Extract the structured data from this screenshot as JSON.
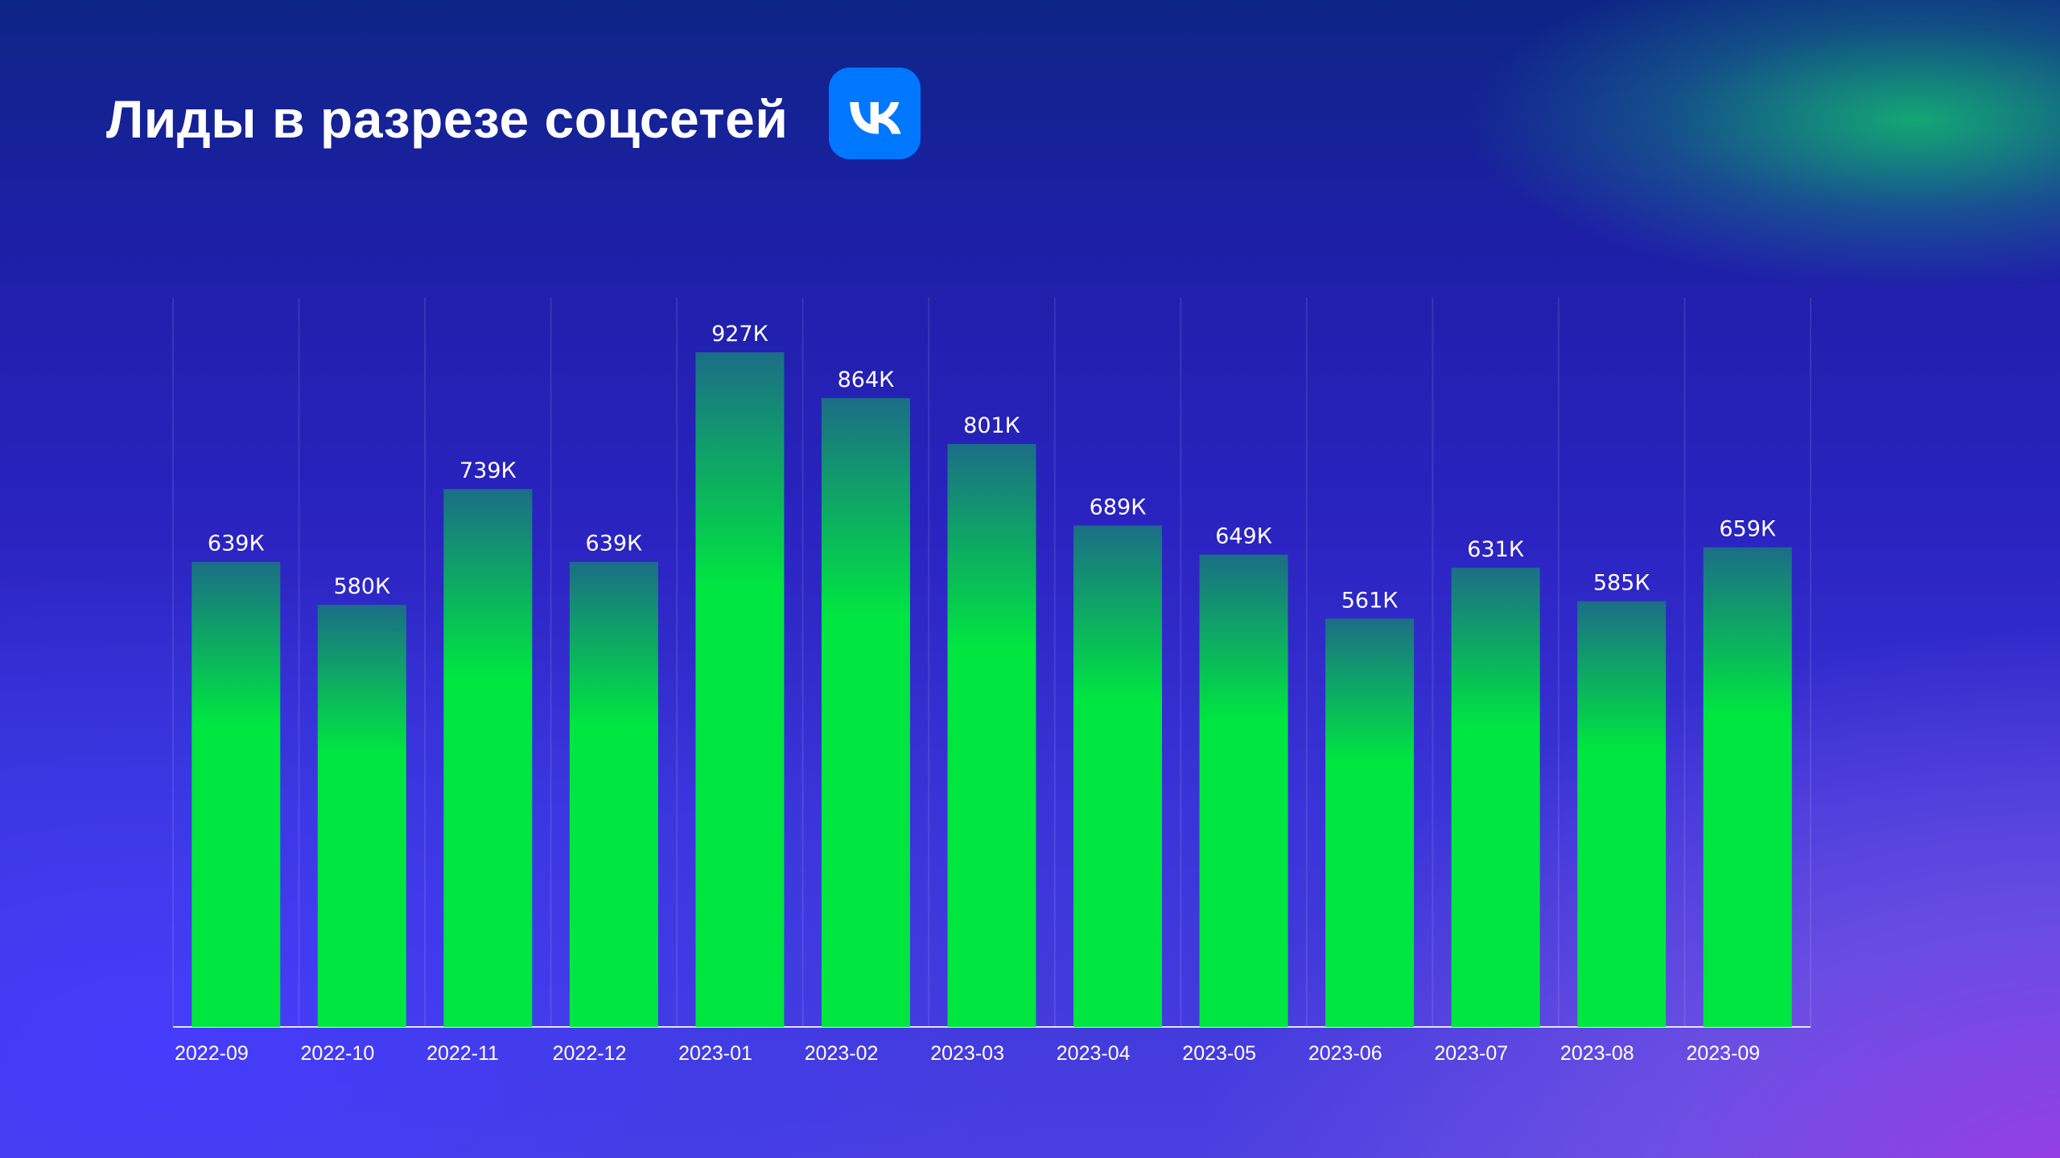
{
  "title": "Лиды в разрезе соцсетей",
  "logo": {
    "icon": "vk-logo-icon",
    "color": "#0077ff"
  },
  "chart_data": {
    "type": "bar",
    "categories": [
      "2022-09",
      "2022-10",
      "2022-11",
      "2022-12",
      "2023-01",
      "2023-02",
      "2023-03",
      "2023-04",
      "2023-05",
      "2023-06",
      "2023-07",
      "2023-08",
      "2023-09"
    ],
    "values": [
      639,
      580,
      739,
      639,
      927,
      864,
      801,
      689,
      649,
      561,
      631,
      585,
      659
    ],
    "data_labels": [
      "639К",
      "580К",
      "739К",
      "639К",
      "927К",
      "864К",
      "801К",
      "689К",
      "649К",
      "561К",
      "631К",
      "585К",
      "659К"
    ],
    "unit": "К",
    "ylim": [
      0,
      1000
    ],
    "grid": "vertical",
    "bar_color": "#00e640",
    "bar_top_color": "#1b6d86"
  }
}
